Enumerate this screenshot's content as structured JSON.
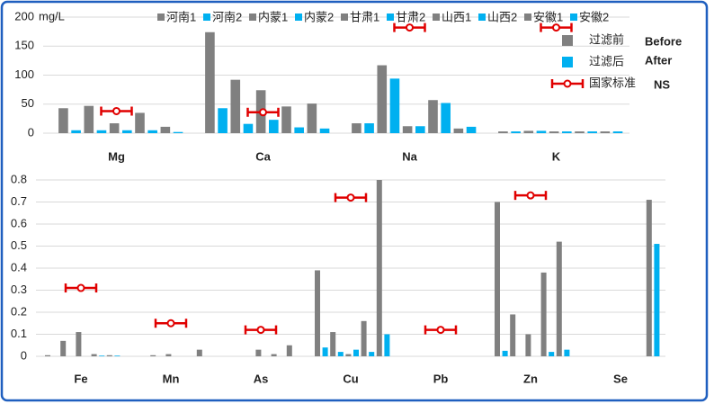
{
  "chart_data": [
    {
      "type": "bar",
      "y_unit": "mg/L",
      "categories": [
        "Mg",
        "Ca",
        "Na",
        "K"
      ],
      "ylim": [
        0,
        200
      ],
      "yticks": [
        0,
        50,
        100,
        150,
        200
      ],
      "grid": true,
      "series": [
        {
          "name": "河南1",
          "color": "#808080",
          "values": [
            43,
            174,
            17,
            3
          ]
        },
        {
          "name": "河南2",
          "color": "#00b0f0",
          "values": [
            5,
            43,
            17,
            3
          ]
        },
        {
          "name": "内蒙1",
          "color": "#808080",
          "values": [
            47,
            92,
            117,
            4
          ]
        },
        {
          "name": "内蒙2",
          "color": "#00b0f0",
          "values": [
            5,
            16,
            94,
            4
          ]
        },
        {
          "name": "甘肃1",
          "color": "#808080",
          "values": [
            17,
            74,
            12,
            3
          ]
        },
        {
          "name": "甘肃2",
          "color": "#00b0f0",
          "values": [
            5,
            23,
            12,
            3
          ]
        },
        {
          "name": "山西1",
          "color": "#808080",
          "values": [
            35,
            46,
            57,
            3
          ]
        },
        {
          "name": "山西2",
          "color": "#00b0f0",
          "values": [
            5,
            10,
            52,
            3
          ]
        },
        {
          "name": "安徽1",
          "color": "#808080",
          "values": [
            11,
            51,
            8,
            3
          ]
        },
        {
          "name": "安徽2",
          "color": "#00b0f0",
          "values": [
            2,
            8,
            11,
            3
          ]
        }
      ],
      "standard": {
        "color": "#e00000",
        "values": [
          38,
          36,
          182,
          182
        ]
      },
      "legend": [
        {
          "label": "过滤前",
          "label_en": "Before",
          "color": "#808080"
        },
        {
          "label": "过滤后",
          "label_en": "After",
          "color": "#00b0f0"
        },
        {
          "label": "国家标准",
          "label_en": "NS",
          "color": "#e00000"
        }
      ]
    },
    {
      "type": "bar",
      "categories": [
        "Fe",
        "Mn",
        "As",
        "Cu",
        "Pb",
        "Zn",
        "Se"
      ],
      "ylim": [
        0,
        0.8
      ],
      "yticks": [
        0,
        0.1,
        0.2,
        0.3,
        0.4,
        0.5,
        0.6,
        0.7,
        0.8
      ],
      "grid": true,
      "series": [
        {
          "name": "河南1",
          "color": "#808080",
          "values": [
            0.005,
            0,
            0,
            0.39,
            0,
            0.7,
            0
          ]
        },
        {
          "name": "河南2",
          "color": "#00b0f0",
          "values": [
            0,
            0,
            0,
            0.04,
            0,
            0.025,
            0
          ]
        },
        {
          "name": "内蒙1",
          "color": "#808080",
          "values": [
            0.07,
            0.005,
            0,
            0.11,
            0,
            0.19,
            0
          ]
        },
        {
          "name": "内蒙2",
          "color": "#00b0f0",
          "values": [
            0,
            0,
            0,
            0.02,
            0,
            0,
            0
          ]
        },
        {
          "name": "甘肃1",
          "color": "#808080",
          "values": [
            0.11,
            0.01,
            0.03,
            0.01,
            0,
            0.1,
            0
          ]
        },
        {
          "name": "甘肃2",
          "color": "#00b0f0",
          "values": [
            0,
            0,
            0,
            0.03,
            0,
            0,
            0
          ]
        },
        {
          "name": "山西1",
          "color": "#808080",
          "values": [
            0.01,
            0,
            0.01,
            0.16,
            0,
            0.38,
            0
          ]
        },
        {
          "name": "山西2",
          "color": "#00b0f0",
          "values": [
            0.003,
            0,
            0,
            0.02,
            0,
            0.02,
            0
          ]
        },
        {
          "name": "安徽1",
          "color": "#808080",
          "values": [
            0.005,
            0.03,
            0.05,
            0.8,
            0,
            0.52,
            0.71
          ]
        },
        {
          "name": "安徽2",
          "color": "#00b0f0",
          "values": [
            0.003,
            0,
            0,
            0.1,
            0,
            0.03,
            0.51
          ]
        }
      ],
      "standard": {
        "color": "#e00000",
        "values": [
          0.31,
          0.15,
          0.12,
          0.72,
          0.12,
          0.73,
          null
        ]
      }
    }
  ]
}
